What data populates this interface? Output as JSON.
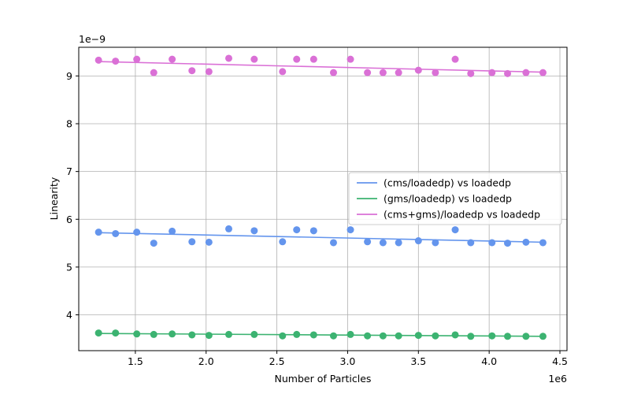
{
  "chart_data": {
    "type": "scatter",
    "xlabel": "Number of Particles",
    "ylabel": "Linearity",
    "x_scale_label": "1e6",
    "y_scale_label": "1e−9",
    "xlim": [
      1.1,
      4.55
    ],
    "ylim": [
      3.25,
      9.6
    ],
    "xticks": [
      1.5,
      2.0,
      2.5,
      3.0,
      3.5,
      4.0,
      4.5
    ],
    "xtick_labels": [
      "1.5",
      "2.0",
      "2.5",
      "3.0",
      "3.5",
      "4.0",
      "4.5"
    ],
    "yticks": [
      4,
      5,
      6,
      7,
      8,
      9
    ],
    "ytick_labels": [
      "4",
      "5",
      "6",
      "7",
      "8",
      "9"
    ],
    "grid": true,
    "legend_position": "center-right",
    "x": [
      1.24,
      1.36,
      1.51,
      1.63,
      1.76,
      1.9,
      2.02,
      2.16,
      2.34,
      2.54,
      2.64,
      2.76,
      2.9,
      3.02,
      3.14,
      3.25,
      3.36,
      3.5,
      3.62,
      3.76,
      3.87,
      4.02,
      4.13,
      4.26,
      4.38
    ],
    "series": [
      {
        "name": "(cms/loadedp) vs loadedp",
        "color": "#6495ED",
        "values": [
          5.73,
          5.7,
          5.73,
          5.5,
          5.75,
          5.53,
          5.52,
          5.8,
          5.76,
          5.53,
          5.78,
          5.76,
          5.51,
          5.78,
          5.53,
          5.51,
          5.51,
          5.55,
          5.51,
          5.78,
          5.51,
          5.51,
          5.5,
          5.52,
          5.51
        ],
        "fit": [
          5.72,
          5.52
        ]
      },
      {
        "name": "(gms/loadedp) vs loadedp",
        "color": "#3CB371",
        "values": [
          3.62,
          3.62,
          3.6,
          3.59,
          3.6,
          3.58,
          3.57,
          3.59,
          3.59,
          3.56,
          3.59,
          3.58,
          3.56,
          3.59,
          3.56,
          3.56,
          3.56,
          3.57,
          3.56,
          3.58,
          3.55,
          3.56,
          3.55,
          3.55,
          3.55
        ],
        "fit": [
          3.61,
          3.55
        ]
      },
      {
        "name": "(cms+gms)/loadedp vs loadedp",
        "color": "#DA70D6",
        "values": [
          9.33,
          9.31,
          9.35,
          9.07,
          9.35,
          9.11,
          9.09,
          9.37,
          9.35,
          9.09,
          9.35,
          9.35,
          9.07,
          9.35,
          9.07,
          9.07,
          9.07,
          9.12,
          9.07,
          9.35,
          9.05,
          9.07,
          9.05,
          9.07,
          9.07
        ],
        "fit": [
          9.3,
          9.08
        ]
      }
    ]
  }
}
